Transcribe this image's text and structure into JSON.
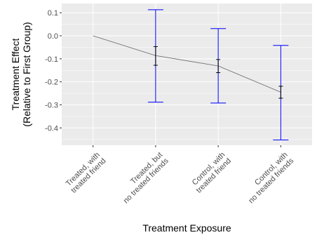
{
  "chart_data": {
    "type": "line",
    "title": "",
    "xlabel": "Treatment Exposure",
    "ylabel": "Treatment Effect",
    "ylabel_line2": "(Relative to First Group)",
    "categories": [
      [
        "Treated, with",
        "treated friend"
      ],
      [
        "Treated, but",
        "no treated friends"
      ],
      [
        "Control, with",
        "treated friend"
      ],
      [
        "Control, with",
        "no treated friends"
      ]
    ],
    "yticks": [
      0.1,
      0.0,
      -0.1,
      -0.2,
      -0.3,
      -0.4
    ],
    "ytick_labels": [
      "0.1",
      "0.0",
      "-0.1",
      "-0.2",
      "-0.3",
      "-0.4"
    ],
    "ylim": [
      -0.475,
      0.14
    ],
    "grid": true,
    "series": [
      {
        "values": [
          0.0,
          -0.086,
          -0.131,
          -0.245
        ],
        "wide_interval": [
          null,
          [
            -0.288,
            0.113
          ],
          [
            -0.292,
            0.031
          ],
          [
            -0.452,
            -0.042
          ]
        ],
        "narrow_interval": [
          null,
          [
            -0.128,
            -0.047
          ],
          [
            -0.16,
            -0.103
          ],
          [
            -0.271,
            -0.219
          ]
        ]
      }
    ],
    "colors": {
      "panel": "#ebebeb",
      "grid_major": "#ffffff",
      "line": "#666666",
      "wide_interval": "#0000ff",
      "narrow_interval": "#000000"
    }
  }
}
